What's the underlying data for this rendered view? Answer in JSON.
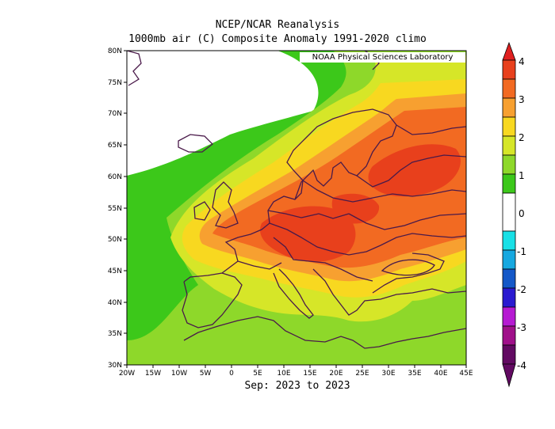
{
  "title_line1": "NCEP/NCAR Reanalysis",
  "title_line2": "1000mb air (C) Composite Anomaly 1991-2020 climo",
  "credit": "NOAA Physical Sciences Laboratory",
  "period": "Sep: 2023 to 2023",
  "map": {
    "lon_labels": [
      "20W",
      "15W",
      "10W",
      "5W",
      "0",
      "5E",
      "10E",
      "15E",
      "20E",
      "25E",
      "30E",
      "35E",
      "40E",
      "45E"
    ],
    "lat_labels": [
      "80N",
      "75N",
      "70N",
      "65N",
      "60N",
      "55N",
      "50N",
      "45N",
      "40N",
      "35N",
      "30N"
    ],
    "lon_range": [
      -20,
      45
    ],
    "lat_range": [
      30,
      80
    ]
  },
  "colorbar": {
    "labels": [
      "4",
      "3",
      "2",
      "1",
      "0",
      "-1",
      "-2",
      "-3",
      "-4"
    ],
    "colors": {
      "c35_4": "#e8401c",
      "c3_35": "#f26a22",
      "c25_3": "#f7a030",
      "c2_25": "#f8d820",
      "c15_2": "#d6e628",
      "c1_15": "#8ed82a",
      "c05_1": "#3cc81a",
      "c0": "#ffffff",
      "cm1": "#18e0e6",
      "cm15": "#16a8e0",
      "cm2": "#1458c8",
      "cm25": "#2a1ad0",
      "cm3": "#b61ad2",
      "cm35": "#a0108a",
      "cm4": "#620a62",
      "top": "#e02020"
    }
  }
}
